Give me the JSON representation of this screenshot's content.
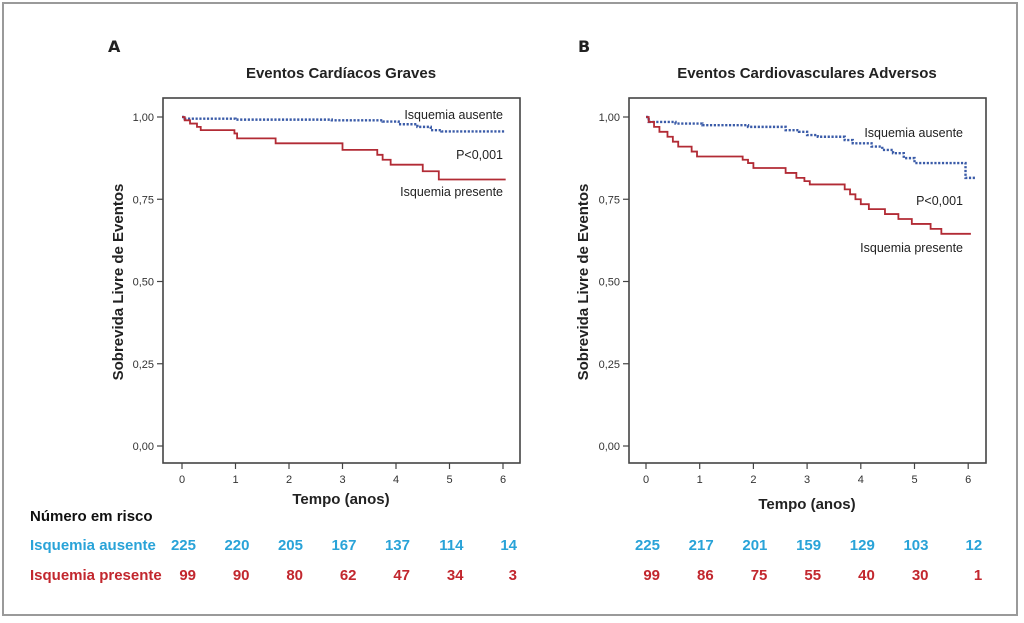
{
  "chart_data": [
    {
      "type": "line",
      "panel": "A",
      "title": "Eventos Cardíacos Graves",
      "xlabel": "Tempo (anos)",
      "ylabel": "Sobrevida Livre de Eventos",
      "xlim": [
        0,
        6.3
      ],
      "ylim": [
        0,
        1.05
      ],
      "xticks": [
        "0",
        "1",
        "2",
        "3",
        "4",
        "5",
        "6"
      ],
      "yticks": [
        {
          "v": 0,
          "label": "0,00"
        },
        {
          "v": 0.25,
          "label": "0,25"
        },
        {
          "v": 0.5,
          "label": "0,50"
        },
        {
          "v": 0.75,
          "label": "0,75"
        },
        {
          "v": 1,
          "label": "1,00"
        }
      ],
      "annotations": {
        "pvalue": "P<0,001"
      },
      "series": [
        {
          "name": "Isquemia ausente",
          "color": "#3a5ba8",
          "style": "dotted",
          "steps": [
            [
              0,
              1.0
            ],
            [
              0.05,
              0.995
            ],
            [
              1.0,
              0.992
            ],
            [
              2.8,
              0.99
            ],
            [
              3.75,
              0.986
            ],
            [
              4.05,
              0.978
            ],
            [
              4.4,
              0.97
            ],
            [
              4.65,
              0.96
            ],
            [
              4.85,
              0.956
            ]
          ],
          "end": 6.05
        },
        {
          "name": "Isquemia presente",
          "color": "#b22b35",
          "style": "solid",
          "steps": [
            [
              0,
              1.0
            ],
            [
              0.05,
              0.99
            ],
            [
              0.15,
              0.98
            ],
            [
              0.28,
              0.97
            ],
            [
              0.35,
              0.96
            ],
            [
              0.98,
              0.95
            ],
            [
              1.03,
              0.935
            ],
            [
              1.75,
              0.92
            ],
            [
              3.0,
              0.9
            ],
            [
              3.65,
              0.885
            ],
            [
              3.75,
              0.87
            ],
            [
              3.9,
              0.855
            ],
            [
              4.5,
              0.835
            ],
            [
              4.8,
              0.81
            ]
          ],
          "end": 6.05
        }
      ]
    },
    {
      "type": "line",
      "panel": "B",
      "title": "Eventos Cardiovasculares Adversos",
      "xlabel": "Tempo (anos)",
      "ylabel": "Sobrevida Livre de Eventos",
      "xlim": [
        0,
        6.3
      ],
      "ylim": [
        0,
        1.05
      ],
      "xticks": [
        "0",
        "1",
        "2",
        "3",
        "4",
        "5",
        "6"
      ],
      "yticks": [
        {
          "v": 0,
          "label": "0,00"
        },
        {
          "v": 0.25,
          "label": "0,25"
        },
        {
          "v": 0.5,
          "label": "0,50"
        },
        {
          "v": 0.75,
          "label": "0,75"
        },
        {
          "v": 1,
          "label": "1,00"
        }
      ],
      "annotations": {
        "pvalue": "P<0,001"
      },
      "series": [
        {
          "name": "Isquemia ausente",
          "color": "#3a5ba8",
          "style": "dotted",
          "steps": [
            [
              0,
              1.0
            ],
            [
              0.05,
              0.985
            ],
            [
              0.55,
              0.98
            ],
            [
              1.05,
              0.975
            ],
            [
              1.9,
              0.97
            ],
            [
              2.6,
              0.96
            ],
            [
              2.85,
              0.955
            ],
            [
              3.0,
              0.945
            ],
            [
              3.2,
              0.94
            ],
            [
              3.7,
              0.93
            ],
            [
              3.85,
              0.92
            ],
            [
              4.2,
              0.91
            ],
            [
              4.4,
              0.9
            ],
            [
              4.6,
              0.89
            ],
            [
              4.8,
              0.875
            ],
            [
              5.0,
              0.86
            ],
            [
              5.95,
              0.815
            ]
          ],
          "end": 6.15
        },
        {
          "name": "Isquemia presente",
          "color": "#b22b35",
          "style": "solid",
          "steps": [
            [
              0,
              1.0
            ],
            [
              0.05,
              0.985
            ],
            [
              0.15,
              0.97
            ],
            [
              0.25,
              0.955
            ],
            [
              0.4,
              0.94
            ],
            [
              0.5,
              0.925
            ],
            [
              0.6,
              0.91
            ],
            [
              0.85,
              0.895
            ],
            [
              0.95,
              0.88
            ],
            [
              1.8,
              0.87
            ],
            [
              1.9,
              0.86
            ],
            [
              2.0,
              0.845
            ],
            [
              2.6,
              0.83
            ],
            [
              2.8,
              0.815
            ],
            [
              2.95,
              0.805
            ],
            [
              3.05,
              0.795
            ],
            [
              3.7,
              0.78
            ],
            [
              3.8,
              0.765
            ],
            [
              3.9,
              0.75
            ],
            [
              4.0,
              0.735
            ],
            [
              4.15,
              0.72
            ],
            [
              4.45,
              0.705
            ],
            [
              4.7,
              0.69
            ],
            [
              4.95,
              0.675
            ],
            [
              5.3,
              0.66
            ],
            [
              5.5,
              0.645
            ]
          ],
          "end": 6.05
        }
      ]
    }
  ],
  "risk_table": {
    "title": "Número em risco",
    "rows": [
      {
        "label": "Isquemia ausente",
        "color": "#29a3d8",
        "A": [
          "225",
          "220",
          "205",
          "167",
          "137",
          "114",
          "14"
        ],
        "B": [
          "225",
          "217",
          "201",
          "159",
          "129",
          "103",
          "12"
        ]
      },
      {
        "label": "Isquemia presente",
        "color": "#c2272e",
        "A": [
          "99",
          "90",
          "80",
          "62",
          "47",
          "34",
          "3"
        ],
        "B": [
          "99",
          "86",
          "75",
          "55",
          "40",
          "30",
          "1"
        ]
      }
    ]
  },
  "labels": {
    "A": {
      "letter": "A",
      "ausente": "Isquemia ausente",
      "presente": "Isquemia presente"
    },
    "B": {
      "letter": "B",
      "ausente": "Isquemia ausente",
      "presente": "Isquemia presente"
    }
  }
}
